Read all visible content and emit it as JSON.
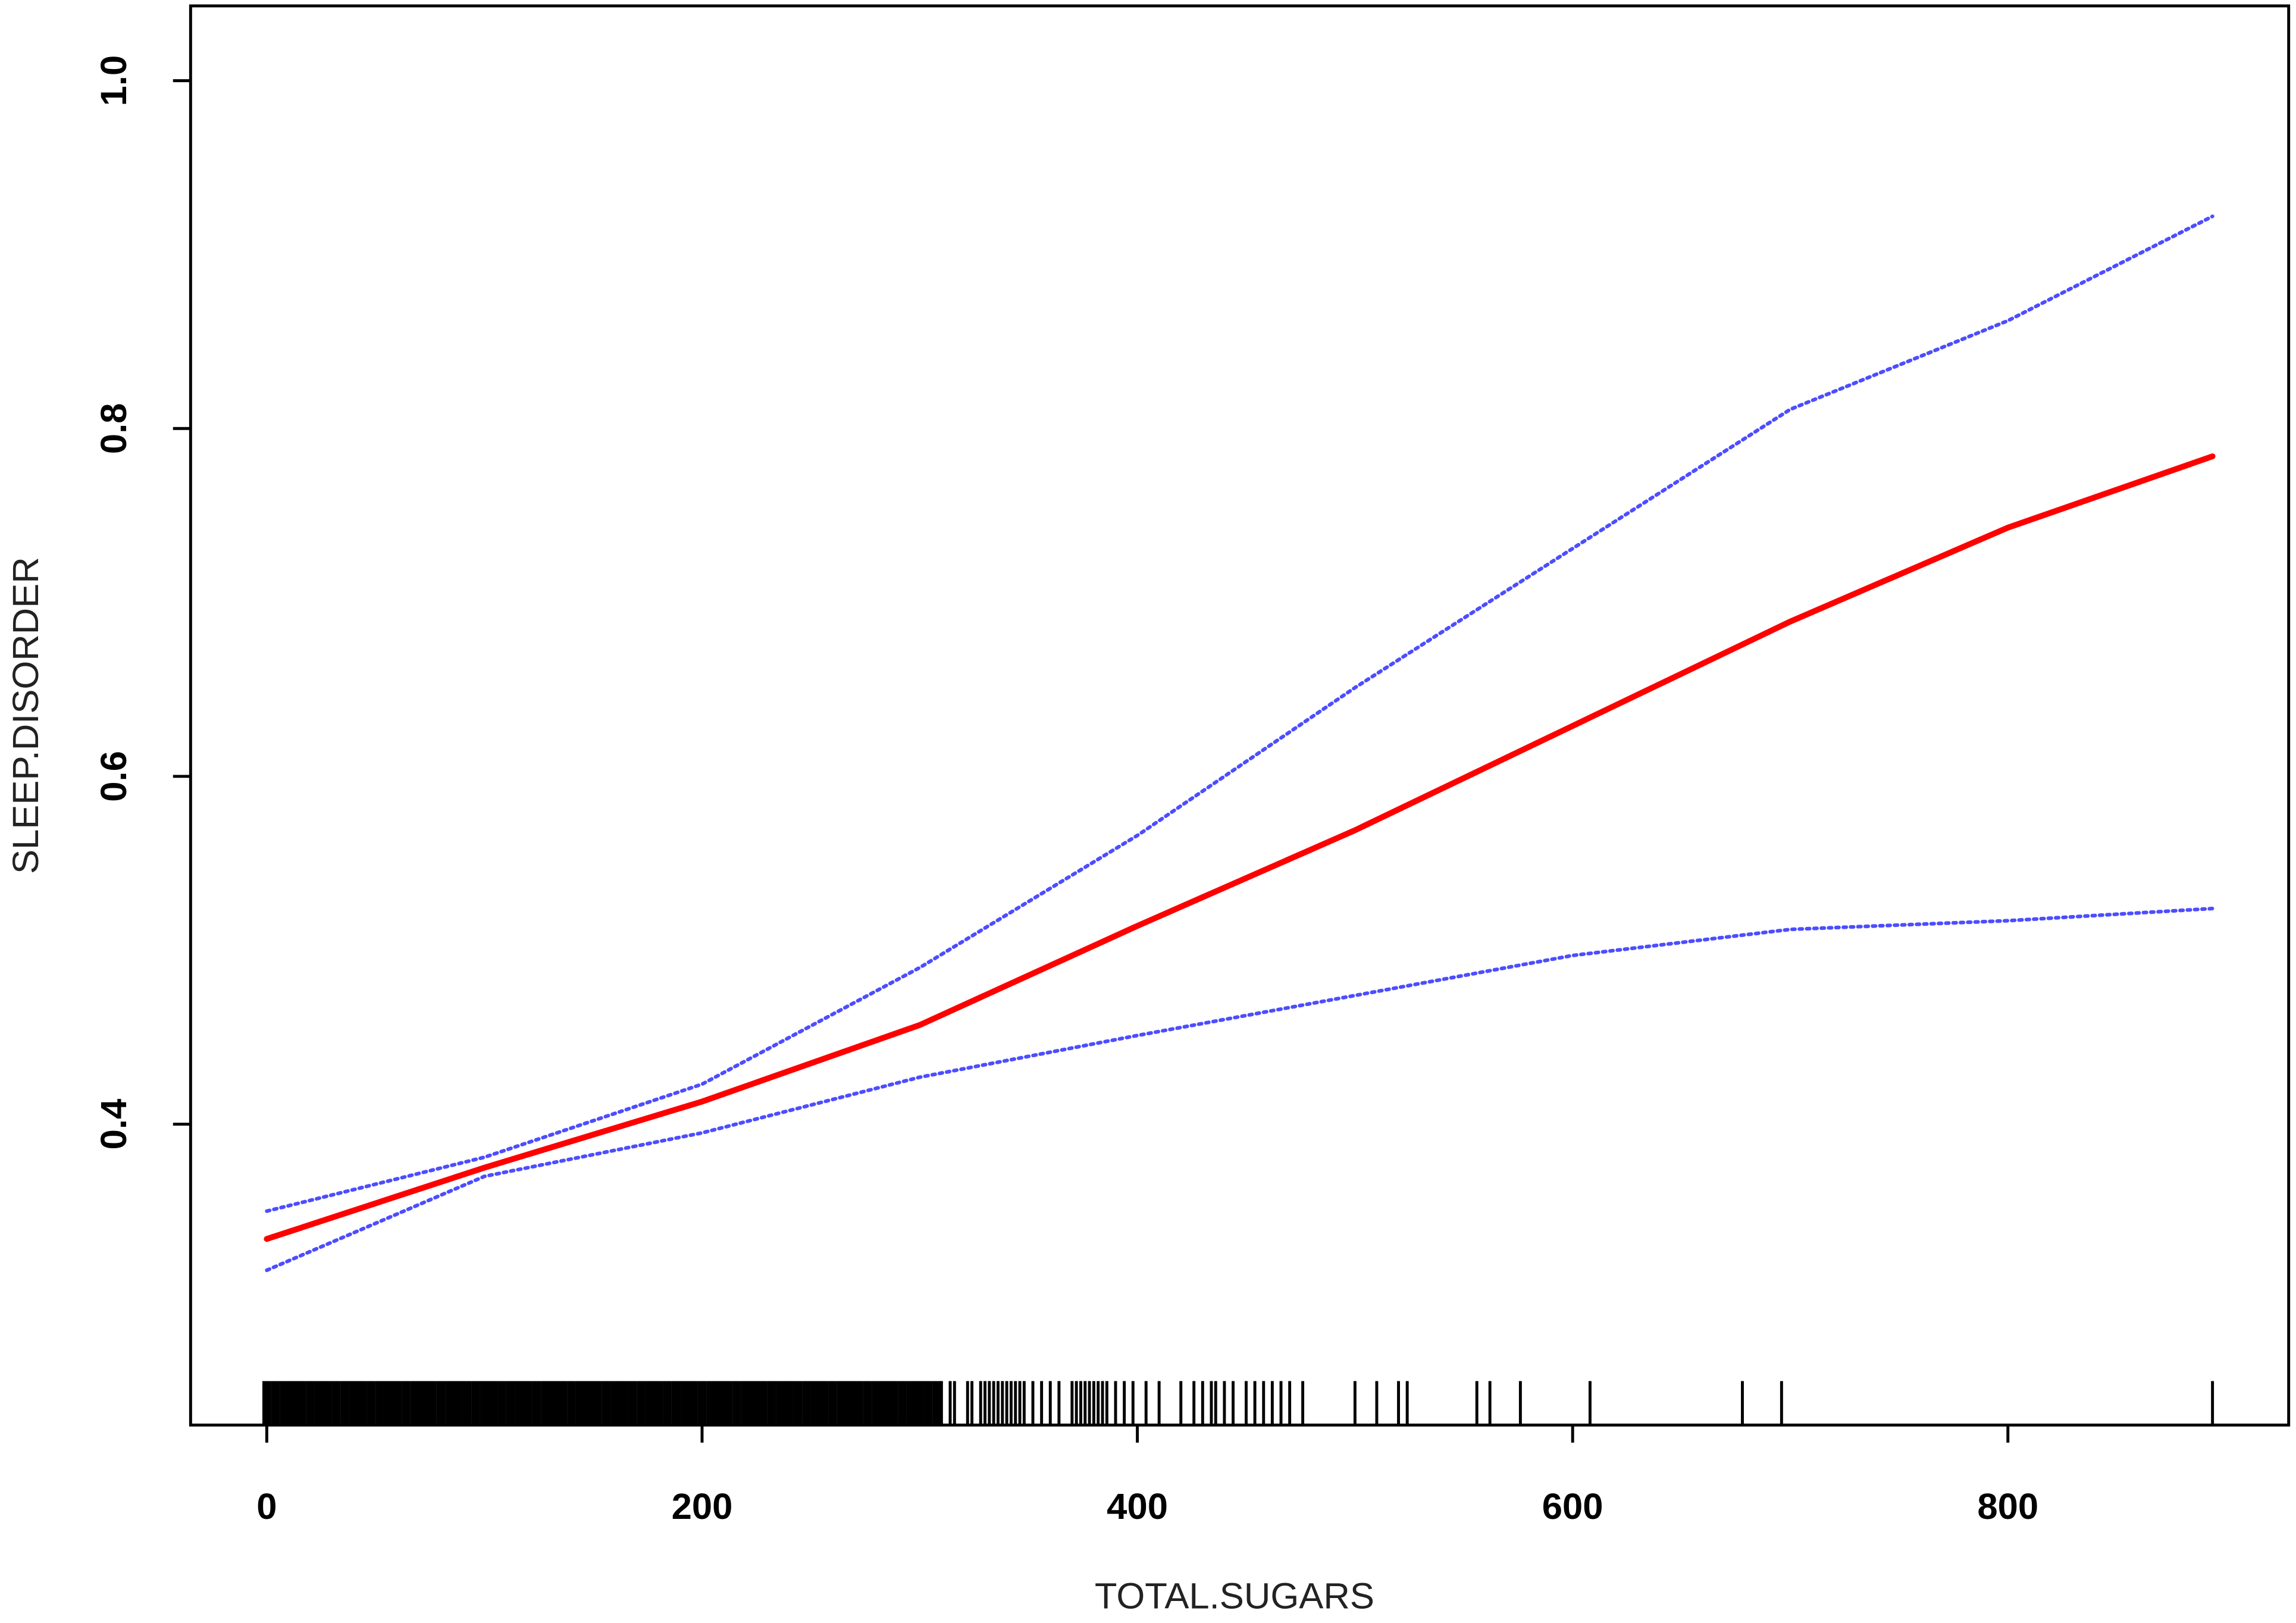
{
  "chart_data": {
    "type": "line",
    "x_label": "TOTAL.SUGARS",
    "y_label": "SLEEP.DISORDER",
    "x": [
      0,
      100,
      200,
      300,
      400,
      500,
      600,
      700,
      800,
      894
    ],
    "series": [
      {
        "name": "fit",
        "color": "#ff0000",
        "style": "solid",
        "values": [
          0.334,
          0.375,
          0.413,
          0.457,
          0.514,
          0.569,
          0.629,
          0.689,
          0.743,
          0.784
        ]
      },
      {
        "name": "upper",
        "color": "#4d4dff",
        "style": "dotted",
        "values": [
          0.35,
          0.381,
          0.423,
          0.49,
          0.566,
          0.651,
          0.731,
          0.811,
          0.862,
          0.922
        ]
      },
      {
        "name": "lower",
        "color": "#4d4dff",
        "style": "dotted",
        "values": [
          0.316,
          0.37,
          0.395,
          0.427,
          0.451,
          0.474,
          0.497,
          0.512,
          0.517,
          0.524
        ]
      }
    ],
    "rug": [
      0,
      4,
      8,
      12,
      16,
      20,
      24,
      28,
      32,
      36,
      40,
      44,
      48,
      52,
      56,
      60,
      64,
      68,
      72,
      76,
      80,
      84,
      88,
      92,
      96,
      100,
      104,
      108,
      112,
      116,
      120,
      124,
      128,
      132,
      136,
      140,
      144,
      148,
      152,
      156,
      160,
      164,
      168,
      172,
      176,
      180,
      184,
      188,
      192,
      196,
      200,
      204,
      208,
      212,
      216,
      220,
      224,
      228,
      232,
      236,
      240,
      244,
      248,
      252,
      256,
      260,
      264,
      268,
      272,
      276,
      280,
      284,
      288,
      292,
      296,
      300,
      304,
      308,
      310,
      314,
      316,
      322,
      324,
      328,
      330,
      332,
      334,
      336,
      338,
      340,
      342,
      344,
      346,
      348,
      352,
      356,
      360,
      364,
      370,
      372,
      374,
      376,
      378,
      380,
      382,
      384,
      386,
      390,
      394,
      398,
      404,
      410,
      420,
      426,
      430,
      434,
      436,
      440,
      444,
      450,
      454,
      458,
      462,
      466,
      470,
      476,
      500,
      510,
      520,
      524,
      556,
      562,
      576,
      608,
      678,
      696,
      894
    ],
    "xlim": [
      -35,
      929
    ],
    "ylim": [
      0.227,
      1.043
    ],
    "xticks": [
      0,
      200,
      400,
      600,
      800
    ],
    "yticks": [
      0.4,
      0.6,
      0.8,
      {
        "value": 1,
        "label": "1.0"
      }
    ]
  }
}
